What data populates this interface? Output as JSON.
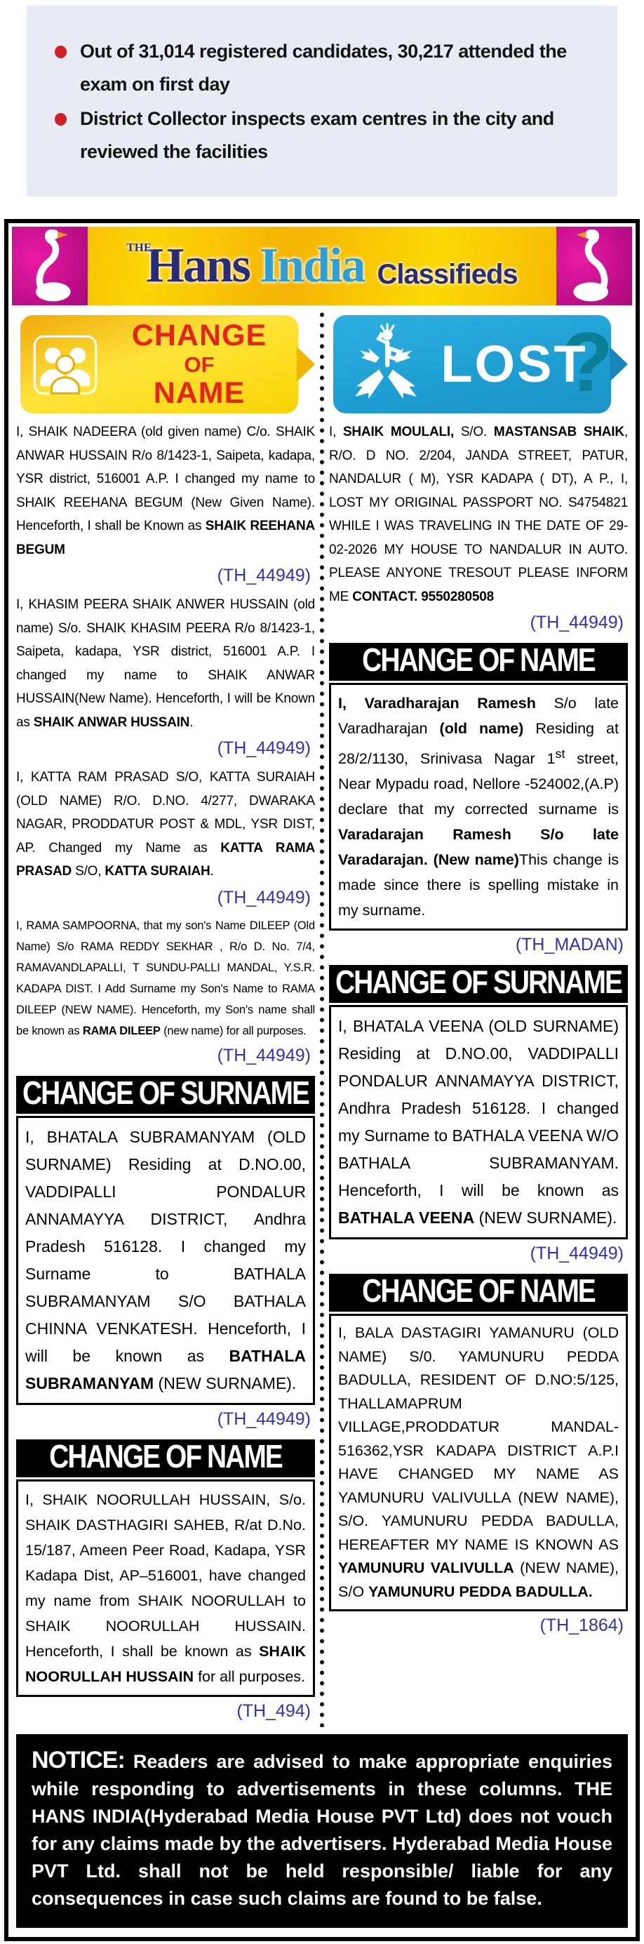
{
  "bulletins": {
    "items": [
      "Out of 31,014 registered candidates, 30,217 attended the exam on first day",
      "District Collector inspects exam centres in the city and reviewed the facilities"
    ]
  },
  "masthead": {
    "the": "THE",
    "title_main": "Hans",
    "title_second": "India",
    "suffix": "Classifieds"
  },
  "categories": {
    "change_of_name": {
      "line1": "CHANGE",
      "line2": "OF",
      "line3": "NAME"
    },
    "lost": {
      "label": "LOST",
      "qmark": "?"
    }
  },
  "columns": {
    "left": {
      "ads": [
        {
          "style": "plain",
          "font": "font-a",
          "tag": "(TH_44949)",
          "runs": [
            {
              "t": "I, SHAIK NADEERA (old given name) C/o. SHAIK ANWAR HUSSAIN R/o 8/1423-1, Saipeta, kadapa, YSR district, 516001 A.P. I changed my name to SHAIK REEHANA BEGUM (New Given Name). Henceforth, I shall be Known as "
            },
            {
              "t": "SHAIK REEHANA BEGUM",
              "b": true
            }
          ]
        },
        {
          "style": "plain",
          "font": "font-a",
          "tag": "(TH_44949)",
          "runs": [
            {
              "t": "I, KHASIM PEERA SHAIK ANWER HUSSAIN (old name) S/o. SHAIK KHASIM PEERA R/o 8/1423-1, Saipeta, kadapa, YSR district, 516001 A.P. I changed my name to SHAIK ANWAR HUSSAIN(New Name). Henceforth, I will be Known as "
            },
            {
              "t": "SHAIK ANWAR HUSSAIN",
              "b": true
            },
            {
              "t": "."
            }
          ]
        },
        {
          "style": "plain",
          "font": "font-a",
          "tag": "(TH_44949)",
          "runs": [
            {
              "t": "I, KATTA RAM PRASAD S/O, KATTA SURAIAH (OLD NAME) R/O. D.NO. 4/277, DWARAKA NAGAR, PRODDATUR POST & MDL, YSR DIST, AP. Changed my Name as "
            },
            {
              "t": "KATTA RAMA PRASAD",
              "b": true
            },
            {
              "t": " S/O, "
            },
            {
              "t": "KATTA SURAIAH",
              "b": true
            },
            {
              "t": "."
            }
          ]
        },
        {
          "style": "plain",
          "font": "font-b",
          "tag": "(TH_44949)",
          "runs": [
            {
              "t": "I, RAMA SAMPOORNA, that my son's Name DILEEP (Old Name) S/o RAMA REDDY SEKHAR , R/o D. No. 7/4, RAMAVANDLAPALLI, T SUNDU-PALLI MANDAL, Y.S.R. KADAPA DIST.  I Add Surname my Son's Name to RAMA DILEEP (NEW NAME).  Henceforth, my Son's name shall be known as "
            },
            {
              "t": "RAMA DILEEP",
              "b": true
            },
            {
              "t": " (new name) for all purposes."
            }
          ]
        },
        {
          "style": "boxed",
          "font": "font-d",
          "header": "CHANGE OF SURNAME",
          "tag": "(TH_44949)",
          "runs": [
            {
              "t": "I, BHATALA SUBRAMANYAM (OLD SURNAME) Residing at D.NO.00, VADDIPALLI PONDALUR ANNAMAYYA DISTRICT, Andhra Pradesh 516128. I changed my Surname to BATHALA SUBRAMANYAM S/O BATHALA CHINNA VENKATESH. Henceforth, I will be known as "
            },
            {
              "t": "BATHALA SUBRAMANYAM",
              "b": true
            },
            {
              "t": " (NEW SURNAME)."
            }
          ]
        },
        {
          "style": "boxed",
          "font": "font-c",
          "header": "CHANGE OF NAME",
          "tag": "(TH_494)",
          "runs": [
            {
              "t": "I, SHAIK NOORULLAH HUSSAIN, S/o. SHAIK DASTHAGIRI SAHEB, R/at D.No. 15/187, Ameen Peer Road, Kadapa, YSR Kadapa Dist, AP–516001, have changed my name from SHAIK NOORULLAH to SHAIK NOORULLAH HUSSAIN. Henceforth, I shall be known as "
            },
            {
              "t": "SHAIK NOORULLAH HUSSAIN",
              "b": true
            },
            {
              "t": " for all purposes."
            }
          ]
        }
      ]
    },
    "right": {
      "ads": [
        {
          "style": "plain",
          "font": "font-a",
          "tag": "(TH_44949)",
          "runs": [
            {
              "t": "I, "
            },
            {
              "t": "SHAIK MOULALI,",
              "b": true
            },
            {
              "t": " S/O. "
            },
            {
              "t": "MASTANSAB SHAIK",
              "b": true
            },
            {
              "t": ", R/O. D NO. 2/204, JANDA STREET, PATUR, NANDALUR ( M), YSR KADAPA ( DT), A P., I, LOST MY ORIGINAL PASSPORT NO. S4754821  WHILE I WAS TRAVELING IN THE DATE OF 29-02-2026 MY HOUSE TO NANDALUR IN AUTO. PLEASE ANYONE TRESOUT PLEASE INFORM ME "
            },
            {
              "t": "CONTACT. 9550280508",
              "b": true
            }
          ]
        },
        {
          "style": "boxed",
          "font": "font-c",
          "header": "CHANGE OF NAME",
          "tag": "(TH_MADAN)",
          "runs": [
            {
              "t": "I, Varadharajan Ramesh",
              "b": true
            },
            {
              "t": " S/o late Varadharajan "
            },
            {
              "t": "(old name)",
              "b": true
            },
            {
              "t": " Residing at 28/2/1130, Srinivasa Nagar 1"
            },
            {
              "t": "st",
              "sup": true
            },
            {
              "t": " street, Near Mypadu road, Nellore -524002,(A.P) declare that my corrected surname is "
            },
            {
              "t": "Varadarajan Ramesh S/o late Varadarajan. (New name)",
              "b": true
            },
            {
              "t": "This change is made since there is spelling mistake in my surname."
            }
          ]
        },
        {
          "style": "boxed",
          "font": "font-d",
          "header": "CHANGE OF SURNAME",
          "tag": "(TH_44949)",
          "runs": [
            {
              "t": "I,  BHATALA VEENA (OLD SURNAME) Residing at D.NO.00, VADDIPALLI PONDALUR ANNAMAYYA DISTRICT, Andhra Pradesh 516128. I changed my Surname to BATHALA VEENA W/O BATHALA SUBRAMANYAM.  Henceforth, I will be known as "
            },
            {
              "t": "BATHALA VEENA",
              "b": true
            },
            {
              "t": " (NEW SURNAME)."
            }
          ]
        },
        {
          "style": "boxed",
          "font": "font-e",
          "header": "CHANGE OF NAME",
          "tag": "(TH_1864)",
          "runs": [
            {
              "t": "I, BALA DASTAGIRI YAMANURU (OLD NAME) S/0. YAMUNURU PEDDA BADULLA, RESIDENT OF D.NO:5/125, THALLAMAPRUM VILLAGE,PRODDATUR MANDAL-516362,YSR KADAPA DISTRICT A.P.I HAVE CHANGED MY NAME AS YAMUNURU VALIVULLA (NEW NAME), S/O. YAMUNURU PEDDA BADULLA, HEREAFTER MY NAME IS KNOWN AS "
            },
            {
              "t": "YAMUNURU VALIVULLA",
              "b": true
            },
            {
              "t": " (NEW NAME), S/O "
            },
            {
              "t": "YAMUNURU PEDDA BADULLA.",
              "b": true
            }
          ]
        }
      ]
    }
  },
  "notice": {
    "label": "NOTICE:",
    "text": " Readers are advised to make appropriate enquiries while responding to advertisements in these columns. THE HANS INDIA(Hyderabad Media House PVT Ltd) does not vouch for any claims made by the advertisers.  Hyderabad Media House PVT Ltd. shall not be held  responsible/ liable for any  consequences in case such claims are  found to be false."
  },
  "colors": {
    "bullet_red": "#cf2027",
    "tag_blue": "#3431b4",
    "banner_yellow": "#f8d303",
    "banner_red_text": "#e5251b",
    "banner_cyan": "#1d9ed2",
    "masthead_navy": "#2b2b7c",
    "masthead_lightblue": "#2e9fd6",
    "swan_magenta": "#c60f8e"
  }
}
